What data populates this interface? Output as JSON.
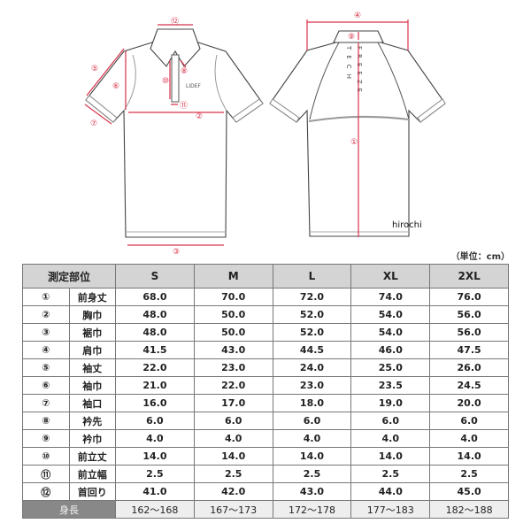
{
  "diagram": {
    "front_labels": {
      "m12": "⑫",
      "m5": "⑤",
      "m6": "⑥",
      "m7": "⑦",
      "m8": "⑧",
      "m10": "⑩",
      "m11": "⑪",
      "m2": "②",
      "m3": "③"
    },
    "back_labels": {
      "m4": "④",
      "m9": "⑨",
      "m1": "①"
    },
    "logo_text": "LIDEF",
    "back_print_1": "FREEZE",
    "back_print_2": "TECH",
    "watermark": "hirochi",
    "accent_color": "#d8334a"
  },
  "unit_note": "（単位：cm）",
  "table": {
    "header": [
      "測定部位",
      "S",
      "M",
      "L",
      "XL",
      "2XL"
    ],
    "rows": [
      {
        "num": "①",
        "part": "前身丈",
        "values": [
          "68.0",
          "70.0",
          "72.0",
          "74.0",
          "76.0"
        ]
      },
      {
        "num": "②",
        "part": "胸巾",
        "values": [
          "48.0",
          "50.0",
          "52.0",
          "54.0",
          "56.0"
        ]
      },
      {
        "num": "③",
        "part": "裾巾",
        "values": [
          "48.0",
          "50.0",
          "52.0",
          "54.0",
          "56.0"
        ]
      },
      {
        "num": "④",
        "part": "肩巾",
        "values": [
          "41.5",
          "43.0",
          "44.5",
          "46.0",
          "47.5"
        ]
      },
      {
        "num": "⑤",
        "part": "袖丈",
        "values": [
          "22.0",
          "23.0",
          "24.0",
          "25.0",
          "26.0"
        ]
      },
      {
        "num": "⑥",
        "part": "袖巾",
        "values": [
          "21.0",
          "22.0",
          "23.0",
          "23.5",
          "24.5"
        ]
      },
      {
        "num": "⑦",
        "part": "袖口",
        "values": [
          "16.0",
          "17.0",
          "18.0",
          "19.0",
          "20.0"
        ]
      },
      {
        "num": "⑧",
        "part": "衿先",
        "values": [
          "6.0",
          "6.0",
          "6.0",
          "6.0",
          "6.0"
        ]
      },
      {
        "num": "⑨",
        "part": "衿巾",
        "values": [
          "4.0",
          "4.0",
          "4.0",
          "4.0",
          "4.0"
        ]
      },
      {
        "num": "⑩",
        "part": "前立丈",
        "values": [
          "14.0",
          "14.0",
          "14.0",
          "14.0",
          "14.0"
        ]
      },
      {
        "num": "⑪",
        "part": "前立幅",
        "values": [
          "2.5",
          "2.5",
          "2.5",
          "2.5",
          "2.5"
        ]
      },
      {
        "num": "⑫",
        "part": "首回り",
        "values": [
          "41.0",
          "42.0",
          "43.0",
          "44.0",
          "45.0"
        ]
      }
    ],
    "footer": {
      "label": "身長",
      "values": [
        "162〜168",
        "167〜173",
        "172〜178",
        "177〜183",
        "182〜188"
      ]
    }
  }
}
